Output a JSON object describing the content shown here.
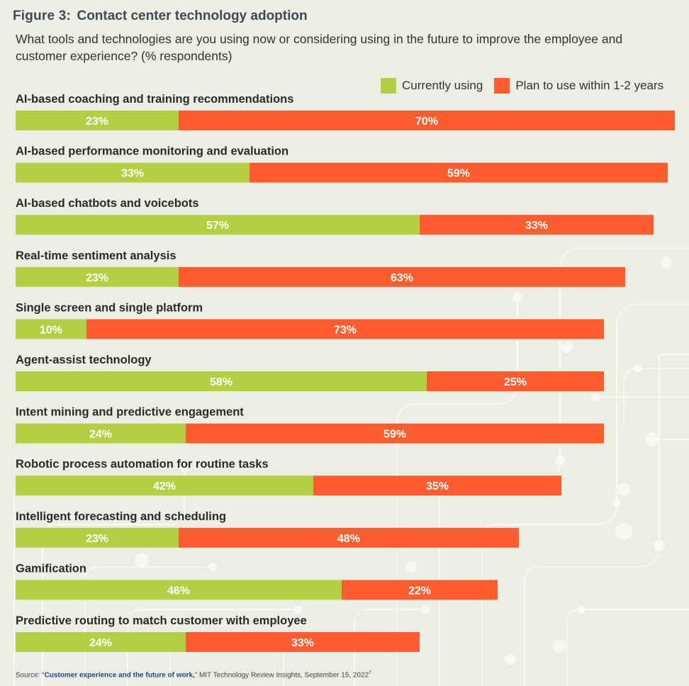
{
  "header": {
    "figure_label": "Figure 3:",
    "title": "Contact center technology adoption",
    "subtitle": "What tools and technologies are you using now or considering using in the future to improve the employee and customer experience? (% respondents)"
  },
  "legend": {
    "currently_using": "Currently using",
    "plan_to_use": "Plan to use within 1-2 years"
  },
  "colors": {
    "currently_using": "#b3d044",
    "plan_to_use": "#fe5e2f",
    "background": "#ecede3"
  },
  "chart_data": {
    "type": "bar",
    "orientation": "horizontal",
    "stacked": true,
    "title": "Contact center technology adoption",
    "xlabel": "",
    "ylabel": "",
    "xlim": [
      0,
      100
    ],
    "unit": "%",
    "categories": [
      "AI-based coaching and training recommendations",
      "AI-based performance monitoring and evaluation",
      "AI-based chatbots and voicebots",
      "Real-time sentiment analysis",
      "Single screen and single platform",
      "Agent-assist technology",
      "Intent mining and predictive engagement",
      "Robotic process automation for routine tasks",
      "Intelligent forecasting and scheduling",
      "Gamification",
      "Predictive routing to match customer with employee"
    ],
    "series": [
      {
        "name": "Currently using",
        "values": [
          23,
          33,
          57,
          23,
          10,
          58,
          24,
          42,
          23,
          46,
          24
        ]
      },
      {
        "name": "Plan to use within 1-2 years",
        "values": [
          70,
          59,
          33,
          63,
          73,
          25,
          59,
          35,
          48,
          22,
          33
        ]
      }
    ],
    "legend_position": "top-right"
  },
  "source": {
    "prefix": "Source: “",
    "link_text": "Customer experience and the future of work,",
    "suffix": "” MIT Technology Review Insights, September 15, 2022",
    "footnote": "7"
  }
}
